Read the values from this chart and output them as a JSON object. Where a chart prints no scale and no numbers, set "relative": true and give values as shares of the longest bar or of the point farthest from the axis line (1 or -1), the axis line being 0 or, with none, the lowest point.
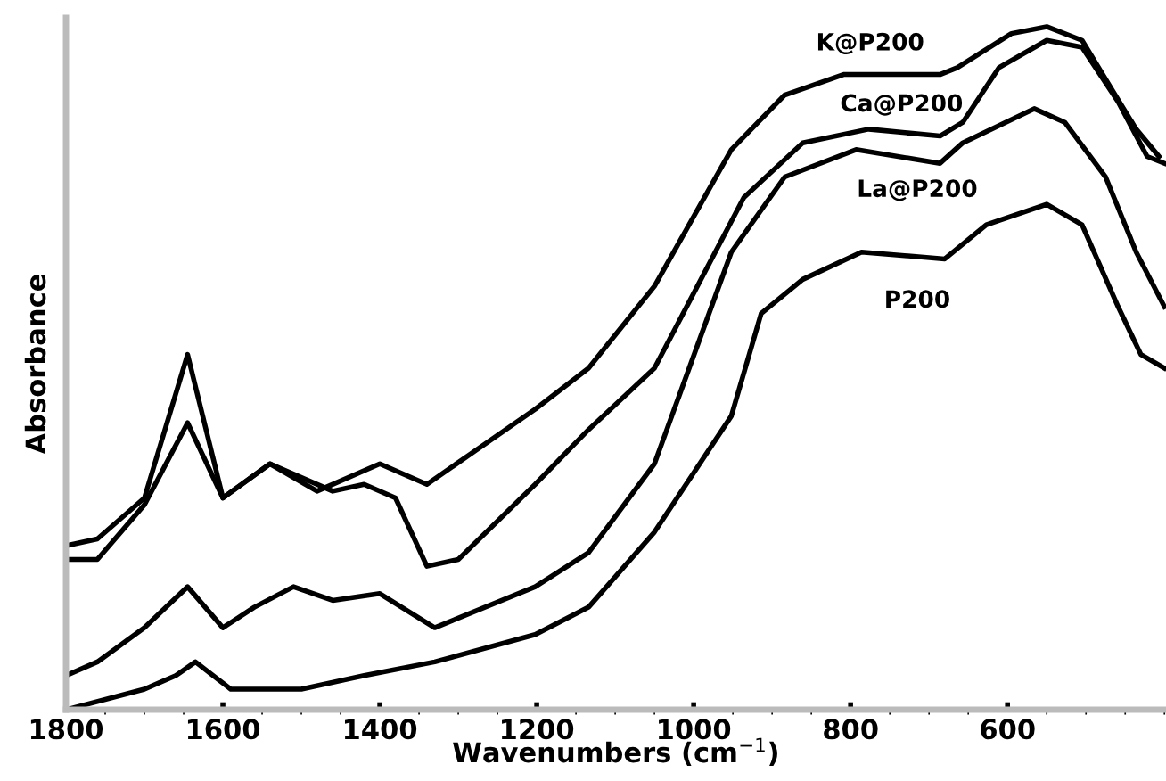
{
  "chart_data": {
    "type": "line",
    "relative": true,
    "xlabel": "Wavenumbers (cm$^{−1}$)",
    "ylabel": "Absorbance",
    "xlim": [
      1800,
      398
    ],
    "xticks": [
      1800,
      1600,
      1400,
      1200,
      1000,
      800,
      600
    ],
    "grid": false,
    "legend": false,
    "marker": "none",
    "line_style": "solid",
    "series": [
      {
        "name": "K@P200",
        "color": "#000000",
        "x": [
          1800,
          1760,
          1700,
          1645,
          1600,
          1540,
          1480,
          1400,
          1340,
          1202,
          1134,
          1050,
          952,
          884,
          809,
          686,
          664,
          595,
          550,
          505,
          468,
          436,
          407
        ],
        "values": [
          0.24,
          0.25,
          0.31,
          0.52,
          0.31,
          0.36,
          0.32,
          0.36,
          0.33,
          0.44,
          0.5,
          0.62,
          0.82,
          0.9,
          0.93,
          0.93,
          0.94,
          0.99,
          1.0,
          0.98,
          0.91,
          0.85,
          0.81
        ]
      },
      {
        "name": "Ca@P200",
        "color": "#000000",
        "x": [
          1800,
          1760,
          1700,
          1645,
          1600,
          1540,
          1460,
          1420,
          1380,
          1340,
          1300,
          1202,
          1134,
          1050,
          936,
          861,
          777,
          686,
          657,
          611,
          550,
          505,
          459,
          422,
          400
        ],
        "values": [
          0.22,
          0.22,
          0.3,
          0.42,
          0.31,
          0.36,
          0.32,
          0.33,
          0.31,
          0.21,
          0.22,
          0.33,
          0.41,
          0.5,
          0.75,
          0.83,
          0.85,
          0.84,
          0.86,
          0.94,
          0.98,
          0.97,
          0.89,
          0.81,
          0.8
        ]
      },
      {
        "name": "La@P200",
        "color": "#000000",
        "x": [
          1800,
          1760,
          1700,
          1645,
          1600,
          1560,
          1510,
          1460,
          1400,
          1330,
          1202,
          1134,
          1050,
          952,
          884,
          793,
          686,
          657,
          566,
          527,
          475,
          436,
          400
        ],
        "values": [
          0.05,
          0.07,
          0.12,
          0.18,
          0.12,
          0.15,
          0.18,
          0.16,
          0.17,
          0.12,
          0.18,
          0.23,
          0.36,
          0.67,
          0.78,
          0.82,
          0.8,
          0.83,
          0.88,
          0.86,
          0.78,
          0.67,
          0.59
        ]
      },
      {
        "name": "P200",
        "color": "#000000",
        "x": [
          1800,
          1700,
          1660,
          1635,
          1590,
          1500,
          1420,
          1330,
          1202,
          1134,
          1050,
          952,
          914,
          861,
          786,
          680,
          627,
          550,
          505,
          459,
          430,
          400
        ],
        "values": [
          0.0,
          0.03,
          0.05,
          0.07,
          0.03,
          0.03,
          0.05,
          0.07,
          0.11,
          0.15,
          0.26,
          0.43,
          0.58,
          0.63,
          0.67,
          0.66,
          0.71,
          0.74,
          0.71,
          0.59,
          0.52,
          0.5
        ]
      }
    ]
  }
}
